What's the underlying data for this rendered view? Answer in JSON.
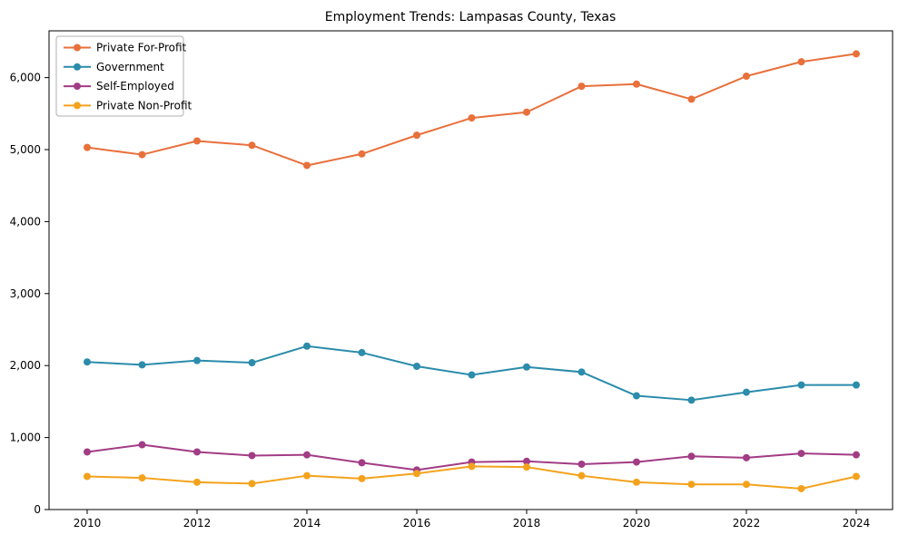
{
  "chart_data": {
    "type": "line",
    "title": "Employment Trends: Lampasas County, Texas",
    "xlabel": "",
    "ylabel": "",
    "x": [
      2010,
      2011,
      2012,
      2013,
      2014,
      2015,
      2016,
      2017,
      2018,
      2019,
      2020,
      2021,
      2022,
      2023,
      2024
    ],
    "xticks": [
      2010,
      2012,
      2014,
      2016,
      2018,
      2020,
      2022,
      2024
    ],
    "yticks": [
      0,
      1000,
      2000,
      3000,
      4000,
      5000,
      6000
    ],
    "ylim": [
      0,
      6650
    ],
    "grid": false,
    "legend_position": "upper-left",
    "series": [
      {
        "name": "Private For-Profit",
        "color": "#e8703b",
        "values": [
          5030,
          4930,
          5120,
          5060,
          4780,
          4940,
          5200,
          5440,
          5520,
          5880,
          5910,
          5700,
          6020,
          6220,
          6330
        ]
      },
      {
        "name": "Government",
        "color": "#2b8cab",
        "values": [
          2050,
          2010,
          2070,
          2040,
          2270,
          2180,
          1990,
          1870,
          1980,
          1910,
          1580,
          1520,
          1630,
          1730,
          1730
        ]
      },
      {
        "name": "Self-Employed",
        "color": "#a23c85",
        "values": [
          800,
          900,
          800,
          750,
          760,
          650,
          550,
          660,
          670,
          630,
          660,
          740,
          720,
          780,
          760
        ]
      },
      {
        "name": "Private Non-Profit",
        "color": "#f4a21c",
        "values": [
          460,
          440,
          380,
          360,
          470,
          430,
          500,
          600,
          590,
          470,
          380,
          350,
          350,
          290,
          460
        ]
      }
    ]
  }
}
